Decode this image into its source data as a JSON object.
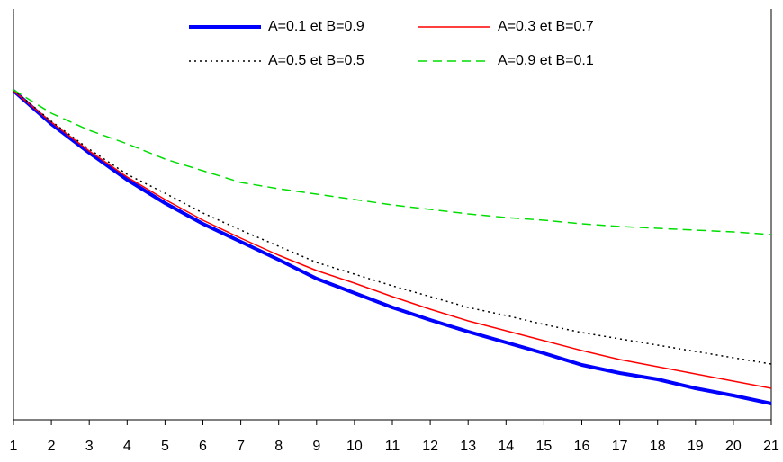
{
  "chart_data": {
    "type": "line",
    "categories": [
      "1",
      "2",
      "3",
      "4",
      "5",
      "6",
      "7",
      "8",
      "9",
      "10",
      "11",
      "12",
      "13",
      "14",
      "15",
      "16",
      "17",
      "18",
      "19",
      "20",
      "21"
    ],
    "series": [
      {
        "name": "A=0.1 et B=0.9",
        "color": "#0000ff",
        "width": 4,
        "dash": "none",
        "values": [
          366,
          329,
          297,
          267,
          241,
          218,
          198,
          178,
          157,
          141,
          125,
          111,
          98,
          86,
          74,
          61,
          52,
          45,
          35,
          27,
          18
        ]
      },
      {
        "name": "A=0.3 et B=0.7",
        "color": "#ff0000",
        "width": 1.5,
        "dash": "none",
        "values": [
          366,
          331,
          299,
          270,
          245,
          222,
          202,
          183,
          166,
          152,
          137,
          123,
          110,
          99,
          88,
          77,
          67,
          59,
          51,
          43,
          35
        ]
      },
      {
        "name": "A=0.5 et B=0.5",
        "color": "#000000",
        "width": 1.5,
        "dash": "2,4",
        "values": [
          367,
          332,
          301,
          273,
          252,
          230,
          211,
          193,
          175,
          162,
          149,
          137,
          125,
          116,
          106,
          97,
          90,
          83,
          76,
          69,
          62
        ]
      },
      {
        "name": "A=0.9 et B=0.1",
        "color": "#00dd00",
        "width": 1.5,
        "dash": "10,6",
        "values": [
          367,
          341,
          322,
          307,
          290,
          277,
          264,
          257,
          251,
          245,
          239,
          234,
          229,
          225,
          222,
          218,
          215,
          213,
          211,
          209,
          206
        ]
      }
    ],
    "ylim": [
      0,
      457
    ]
  }
}
